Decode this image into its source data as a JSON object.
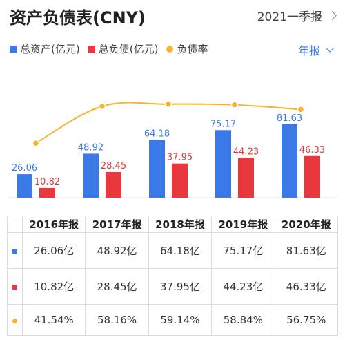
{
  "header": {
    "title": "资产负债表(CNY)",
    "period": "2021一季报"
  },
  "legend": {
    "assets": "总资产(亿元)",
    "liabilities": "总负债(亿元)",
    "ratio": "负债率"
  },
  "frequency": "年报",
  "colors": {
    "assets": "#3b7ae6",
    "liabilities": "#e8383d",
    "ratio": "#f3b52f",
    "assets_label": "#3b7ae6",
    "liabilities_label": "#e03a3a"
  },
  "chart_data": {
    "type": "bar",
    "categories": [
      "2016年报",
      "2017年报",
      "2018年报",
      "2019年报",
      "2020年报"
    ],
    "series": [
      {
        "name": "总资产(亿元)",
        "type": "bar",
        "values": [
          26.06,
          48.92,
          64.18,
          75.17,
          81.63
        ]
      },
      {
        "name": "总负债(亿元)",
        "type": "bar",
        "values": [
          10.82,
          28.45,
          37.95,
          44.23,
          46.33
        ]
      },
      {
        "name": "负债率",
        "type": "line",
        "values": [
          41.54,
          58.16,
          59.14,
          58.84,
          56.75
        ],
        "unit": "%"
      }
    ],
    "legend": "top-left",
    "grid": false
  },
  "table": {
    "headers": [
      "2016年报",
      "2017年报",
      "2018年报",
      "2019年报",
      "2020年报"
    ],
    "rows": [
      {
        "marker": "assets",
        "cells": [
          "26.06亿",
          "48.92亿",
          "64.18亿",
          "75.17亿",
          "81.63亿"
        ]
      },
      {
        "marker": "liabilities",
        "cells": [
          "10.82亿",
          "28.45亿",
          "37.95亿",
          "44.23亿",
          "46.33亿"
        ]
      },
      {
        "marker": "ratio",
        "cells": [
          "41.54%",
          "58.16%",
          "59.14%",
          "58.84%",
          "56.75%"
        ]
      }
    ]
  }
}
